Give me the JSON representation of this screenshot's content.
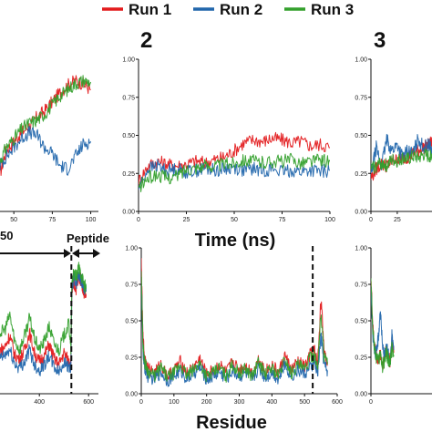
{
  "legend": {
    "items": [
      {
        "label": "Run 1",
        "color": "#e31a1c"
      },
      {
        "label": "Run 2",
        "color": "#2166ac"
      },
      {
        "label": "Run 3",
        "color": "#33a02c"
      }
    ]
  },
  "panel_labels": [
    "2",
    "3"
  ],
  "shared_labels": {
    "top_xlabel": "Time (ns)",
    "bottom_xlabel": "Residue",
    "region_left": "50",
    "region_peptide": "Peptide"
  },
  "chart_data": [
    {
      "id": "rmsd-panel-1",
      "type": "line",
      "xlim": [
        41,
        105
      ],
      "ylim": [
        0,
        1
      ],
      "xticks": [
        50,
        75,
        100
      ],
      "yticks": [],
      "series": [
        {
          "name": "Run 1",
          "color": "#e31a1c",
          "x": [
            41,
            45,
            50,
            55,
            60,
            65,
            70,
            75,
            80,
            85,
            90,
            95,
            100
          ],
          "y": [
            0.25,
            0.4,
            0.46,
            0.52,
            0.56,
            0.62,
            0.66,
            0.72,
            0.78,
            0.83,
            0.86,
            0.84,
            0.8
          ]
        },
        {
          "name": "Run 2",
          "color": "#2166ac",
          "x": [
            41,
            45,
            50,
            55,
            60,
            65,
            70,
            75,
            80,
            85,
            90,
            95,
            100
          ],
          "y": [
            0.3,
            0.36,
            0.42,
            0.48,
            0.52,
            0.5,
            0.42,
            0.38,
            0.3,
            0.28,
            0.36,
            0.44,
            0.46
          ]
        },
        {
          "name": "Run 3",
          "color": "#33a02c",
          "x": [
            41,
            45,
            50,
            55,
            60,
            65,
            70,
            75,
            80,
            85,
            90,
            95,
            100
          ],
          "y": [
            0.33,
            0.42,
            0.48,
            0.54,
            0.58,
            0.6,
            0.64,
            0.7,
            0.76,
            0.8,
            0.84,
            0.86,
            0.85
          ]
        }
      ]
    },
    {
      "id": "rmsd-panel-2",
      "type": "line",
      "xlim": [
        0,
        100
      ],
      "ylim": [
        0,
        1
      ],
      "xticks": [
        0,
        25,
        50,
        75,
        100
      ],
      "yticks": [
        0.0,
        0.25,
        0.5,
        0.75,
        1.0
      ],
      "yticklabels": [
        "0.00",
        "0.25",
        "0.50",
        "0.75",
        "1.00"
      ],
      "series": [
        {
          "name": "Run 1",
          "color": "#e31a1c",
          "x": [
            0,
            5,
            10,
            15,
            20,
            25,
            30,
            35,
            40,
            45,
            50,
            55,
            60,
            65,
            70,
            75,
            80,
            85,
            90,
            95,
            100
          ],
          "y": [
            0.2,
            0.3,
            0.33,
            0.31,
            0.3,
            0.31,
            0.33,
            0.32,
            0.34,
            0.36,
            0.4,
            0.45,
            0.47,
            0.46,
            0.48,
            0.47,
            0.45,
            0.46,
            0.43,
            0.44,
            0.42
          ]
        },
        {
          "name": "Run 2",
          "color": "#2166ac",
          "x": [
            0,
            5,
            10,
            15,
            20,
            25,
            30,
            35,
            40,
            45,
            50,
            55,
            60,
            65,
            70,
            75,
            80,
            85,
            90,
            95,
            100
          ],
          "y": [
            0.15,
            0.28,
            0.3,
            0.27,
            0.28,
            0.26,
            0.27,
            0.28,
            0.27,
            0.28,
            0.29,
            0.27,
            0.28,
            0.27,
            0.28,
            0.26,
            0.27,
            0.26,
            0.27,
            0.26,
            0.27
          ]
        },
        {
          "name": "Run 3",
          "color": "#33a02c",
          "x": [
            0,
            5,
            10,
            15,
            20,
            25,
            30,
            35,
            40,
            45,
            50,
            55,
            60,
            65,
            70,
            75,
            80,
            85,
            90,
            95,
            100
          ],
          "y": [
            0.15,
            0.22,
            0.24,
            0.22,
            0.23,
            0.28,
            0.29,
            0.3,
            0.3,
            0.31,
            0.32,
            0.34,
            0.33,
            0.32,
            0.33,
            0.33,
            0.34,
            0.32,
            0.33,
            0.34,
            0.33
          ]
        }
      ]
    },
    {
      "id": "rmsd-panel-3",
      "type": "line",
      "xlim": [
        0,
        58
      ],
      "ylim": [
        0,
        1
      ],
      "xticks": [
        0,
        25
      ],
      "yticks": [
        0.0,
        0.25,
        0.5,
        0.75,
        1.0
      ],
      "yticklabels": [
        "0.00",
        "0.25",
        "0.50",
        "0.75",
        "1.00"
      ],
      "series": [
        {
          "name": "Run 1",
          "color": "#e31a1c",
          "x": [
            0,
            5,
            10,
            15,
            20,
            25,
            30,
            35,
            40,
            45,
            50,
            55,
            58
          ],
          "y": [
            0.22,
            0.28,
            0.31,
            0.3,
            0.33,
            0.34,
            0.35,
            0.36,
            0.38,
            0.4,
            0.42,
            0.44,
            0.45
          ]
        },
        {
          "name": "Run 2",
          "color": "#2166ac",
          "x": [
            0,
            5,
            10,
            15,
            20,
            25,
            30,
            35,
            40,
            45,
            50,
            55,
            58
          ],
          "y": [
            0.24,
            0.42,
            0.3,
            0.47,
            0.4,
            0.44,
            0.36,
            0.4,
            0.38,
            0.48,
            0.42,
            0.44,
            0.4
          ]
        },
        {
          "name": "Run 3",
          "color": "#33a02c",
          "x": [
            0,
            5,
            10,
            15,
            20,
            25,
            30,
            35,
            40,
            45,
            50,
            55,
            58
          ],
          "y": [
            0.28,
            0.3,
            0.32,
            0.3,
            0.34,
            0.33,
            0.35,
            0.34,
            0.36,
            0.35,
            0.37,
            0.36,
            0.38
          ]
        }
      ]
    },
    {
      "id": "rmsf-panel-1",
      "type": "line",
      "xlim": [
        240,
        640
      ],
      "ylim": [
        0,
        1
      ],
      "xticks": [
        400,
        600
      ],
      "yticks": [],
      "vline": 530,
      "series": [
        {
          "name": "Run 1",
          "color": "#e31a1c",
          "x": [
            240,
            260,
            280,
            300,
            320,
            340,
            360,
            380,
            400,
            420,
            440,
            460,
            480,
            500,
            520,
            528,
            532,
            540,
            550,
            560,
            570,
            580,
            590
          ],
          "y": [
            0.3,
            0.32,
            0.4,
            0.26,
            0.24,
            0.3,
            0.42,
            0.28,
            0.22,
            0.26,
            0.34,
            0.24,
            0.2,
            0.28,
            0.22,
            0.2,
            0.7,
            0.75,
            0.72,
            0.8,
            0.78,
            0.7,
            0.68
          ]
        },
        {
          "name": "Run 2",
          "color": "#2166ac",
          "x": [
            240,
            260,
            280,
            300,
            320,
            340,
            360,
            380,
            400,
            420,
            440,
            460,
            480,
            500,
            520,
            528,
            532,
            540,
            550,
            560,
            570,
            580,
            590
          ],
          "y": [
            0.24,
            0.26,
            0.3,
            0.2,
            0.18,
            0.22,
            0.3,
            0.2,
            0.16,
            0.2,
            0.26,
            0.18,
            0.15,
            0.22,
            0.18,
            0.16,
            0.72,
            0.8,
            0.76,
            0.82,
            0.78,
            0.74,
            0.7
          ]
        },
        {
          "name": "Run 3",
          "color": "#33a02c",
          "x": [
            240,
            260,
            280,
            300,
            320,
            340,
            360,
            380,
            400,
            420,
            440,
            460,
            480,
            500,
            520,
            528,
            532,
            540,
            550,
            560,
            570,
            580,
            590
          ],
          "y": [
            0.42,
            0.44,
            0.54,
            0.36,
            0.3,
            0.4,
            0.52,
            0.38,
            0.3,
            0.36,
            0.46,
            0.34,
            0.3,
            0.4,
            0.48,
            0.3,
            0.78,
            0.82,
            0.8,
            0.86,
            0.82,
            0.76,
            0.72
          ]
        }
      ]
    },
    {
      "id": "rmsf-panel-2",
      "type": "line",
      "xlim": [
        0,
        600
      ],
      "ylim": [
        0,
        1
      ],
      "xticks": [
        0,
        100,
        200,
        300,
        400,
        500,
        600
      ],
      "yticks": [
        0.0,
        0.25,
        0.5,
        0.75,
        1.0
      ],
      "yticklabels": [
        "0.00",
        "0.25",
        "0.50",
        "0.75",
        "1.00"
      ],
      "vline": 525,
      "series": [
        {
          "name": "Run 1",
          "color": "#e31a1c",
          "x": [
            0,
            5,
            10,
            20,
            40,
            60,
            80,
            100,
            120,
            140,
            160,
            180,
            200,
            220,
            240,
            260,
            280,
            300,
            320,
            340,
            360,
            380,
            400,
            420,
            440,
            460,
            480,
            500,
            520,
            530,
            540,
            550,
            560,
            570
          ],
          "y": [
            0.9,
            0.4,
            0.25,
            0.18,
            0.14,
            0.2,
            0.12,
            0.16,
            0.22,
            0.14,
            0.18,
            0.24,
            0.13,
            0.16,
            0.2,
            0.14,
            0.22,
            0.16,
            0.19,
            0.14,
            0.24,
            0.15,
            0.2,
            0.14,
            0.26,
            0.16,
            0.22,
            0.18,
            0.28,
            0.3,
            0.2,
            0.65,
            0.3,
            0.22
          ]
        },
        {
          "name": "Run 2",
          "color": "#2166ac",
          "x": [
            0,
            5,
            10,
            20,
            40,
            60,
            80,
            100,
            120,
            140,
            160,
            180,
            200,
            220,
            240,
            260,
            280,
            300,
            320,
            340,
            360,
            380,
            400,
            420,
            440,
            460,
            480,
            500,
            520,
            530,
            540,
            550,
            560,
            570
          ],
          "y": [
            0.8,
            0.3,
            0.18,
            0.12,
            0.1,
            0.15,
            0.09,
            0.12,
            0.16,
            0.1,
            0.14,
            0.18,
            0.1,
            0.12,
            0.15,
            0.1,
            0.16,
            0.12,
            0.14,
            0.1,
            0.18,
            0.11,
            0.15,
            0.1,
            0.2,
            0.12,
            0.16,
            0.14,
            0.18,
            0.22,
            0.14,
            0.4,
            0.2,
            0.16
          ]
        },
        {
          "name": "Run 3",
          "color": "#33a02c",
          "x": [
            0,
            5,
            10,
            20,
            40,
            60,
            80,
            100,
            120,
            140,
            160,
            180,
            200,
            220,
            240,
            260,
            280,
            300,
            320,
            340,
            360,
            380,
            400,
            420,
            440,
            460,
            480,
            500,
            520,
            530,
            540,
            550,
            560,
            570
          ],
          "y": [
            0.85,
            0.35,
            0.22,
            0.16,
            0.12,
            0.18,
            0.11,
            0.14,
            0.2,
            0.12,
            0.16,
            0.21,
            0.12,
            0.14,
            0.18,
            0.12,
            0.2,
            0.14,
            0.17,
            0.12,
            0.22,
            0.13,
            0.18,
            0.12,
            0.24,
            0.14,
            0.2,
            0.16,
            0.26,
            0.26,
            0.18,
            0.55,
            0.26,
            0.2
          ]
        }
      ]
    },
    {
      "id": "rmsf-panel-3",
      "type": "line",
      "xlim": [
        0,
        160
      ],
      "ylim": [
        0,
        1
      ],
      "xticks": [
        0
      ],
      "yticks": [
        0.0,
        0.25,
        0.5,
        0.75,
        1.0
      ],
      "yticklabels": [
        "0.00",
        "0.25",
        "0.50",
        "0.75",
        "1.00"
      ],
      "series": [
        {
          "name": "Run 1",
          "color": "#e31a1c",
          "x": [
            0,
            5,
            10,
            15,
            20,
            25,
            30,
            35,
            40,
            45,
            50,
            55,
            60
          ],
          "y": [
            0.8,
            0.45,
            0.32,
            0.26,
            0.22,
            0.28,
            0.2,
            0.24,
            0.3,
            0.26,
            0.22,
            0.34,
            0.28
          ]
        },
        {
          "name": "Run 2",
          "color": "#2166ac",
          "x": [
            0,
            5,
            10,
            15,
            20,
            25,
            30,
            35,
            40,
            45,
            50,
            55,
            60
          ],
          "y": [
            0.75,
            0.4,
            0.28,
            0.3,
            0.4,
            0.58,
            0.34,
            0.24,
            0.32,
            0.28,
            0.2,
            0.4,
            0.3
          ]
        },
        {
          "name": "Run 3",
          "color": "#33a02c",
          "x": [
            0,
            5,
            10,
            15,
            20,
            25,
            30,
            35,
            40,
            45,
            50,
            55,
            60
          ],
          "y": [
            0.78,
            0.42,
            0.3,
            0.24,
            0.22,
            0.26,
            0.18,
            0.22,
            0.28,
            0.24,
            0.2,
            0.32,
            0.26
          ]
        }
      ]
    }
  ]
}
